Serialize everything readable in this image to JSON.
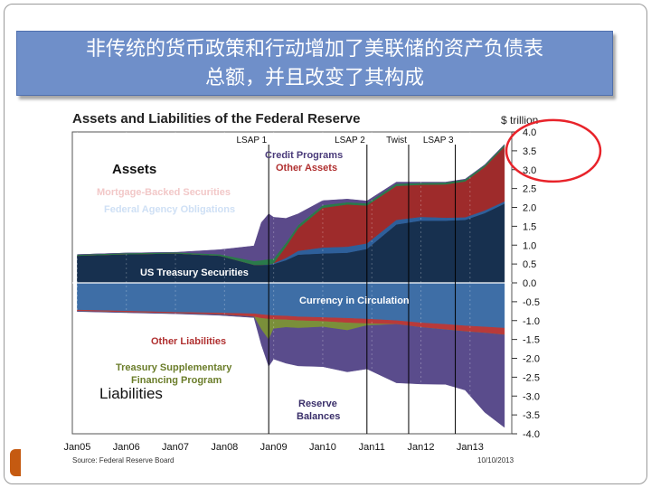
{
  "slide": {
    "title_line1": "非传统的货币政策和行动增加了美联储的资产负债表",
    "title_line2": "总额，并且改变了其构成",
    "accent_color": "#c55a11",
    "title_bg": "#6f8fc9"
  },
  "chart_data": {
    "type": "area",
    "title": "Assets and Liabilities of the Federal Reserve",
    "unit_label": "$ trillion",
    "ylim": [
      -4.0,
      4.0
    ],
    "yticks": [
      "4.0",
      "3.5",
      "3.0",
      "2.5",
      "2.0",
      "1.5",
      "1.0",
      "0.5",
      "0.0",
      "-0.5",
      "-1.0",
      "-1.5",
      "-2.0",
      "-2.5",
      "-3.0",
      "-3.5",
      "-4.0"
    ],
    "x_tick_labels": [
      "Jan05",
      "Jan06",
      "Jan07",
      "Jan08",
      "Jan09",
      "Jan10",
      "Jan11",
      "Jan12",
      "Jan13"
    ],
    "x_range": [
      2004.9,
      2013.85
    ],
    "x": [
      2005.0,
      2006.0,
      2007.0,
      2007.9,
      2008.6,
      2008.75,
      2008.9,
      2009.0,
      2009.25,
      2009.5,
      2010.0,
      2010.5,
      2010.9,
      2011.5,
      2012.0,
      2012.5,
      2012.9,
      2013.3,
      2013.7
    ],
    "events": [
      {
        "label": "LSAP 1",
        "x": 2008.9
      },
      {
        "label": "LSAP 2",
        "x": 2010.9
      },
      {
        "label": "Twist",
        "x": 2011.75
      },
      {
        "label": "LSAP 3",
        "x": 2012.7
      }
    ],
    "asset_series": [
      {
        "name": "US Treasury Securities",
        "color": "#17304f",
        "values": [
          0.72,
          0.76,
          0.78,
          0.72,
          0.48,
          0.48,
          0.48,
          0.5,
          0.6,
          0.75,
          0.78,
          0.8,
          0.9,
          1.55,
          1.65,
          1.65,
          1.67,
          1.85,
          2.1
        ]
      },
      {
        "name": "Federal Agency Obligations",
        "color": "#2e5f9a",
        "values": [
          0.0,
          0.0,
          0.0,
          0.0,
          0.0,
          0.0,
          0.01,
          0.02,
          0.06,
          0.1,
          0.16,
          0.16,
          0.15,
          0.12,
          0.1,
          0.08,
          0.07,
          0.07,
          0.06
        ]
      },
      {
        "name": "Mortgage-Backed Securities",
        "color": "#9e2b2b",
        "values": [
          0.0,
          0.0,
          0.0,
          0.0,
          0.0,
          0.0,
          0.0,
          0.0,
          0.3,
          0.6,
          1.05,
          1.12,
          1.0,
          0.9,
          0.85,
          0.88,
          0.95,
          1.15,
          1.45
        ]
      },
      {
        "name": "Other Assets",
        "color": "#2a7a4a",
        "values": [
          0.03,
          0.03,
          0.03,
          0.04,
          0.1,
          0.12,
          0.14,
          0.12,
          0.1,
          0.08,
          0.07,
          0.06,
          0.06,
          0.06,
          0.05,
          0.05,
          0.05,
          0.05,
          0.05
        ]
      },
      {
        "name": "Credit Programs",
        "color": "#5b4a8a",
        "values": [
          0.0,
          0.0,
          0.0,
          0.12,
          0.4,
          1.0,
          1.2,
          1.1,
          0.65,
          0.3,
          0.12,
          0.08,
          0.06,
          0.04,
          0.02,
          0.01,
          0.01,
          0.01,
          0.01
        ]
      }
    ],
    "liability_series": [
      {
        "name": "Currency in Circulation",
        "color": "#3e6ea6",
        "values": [
          -0.72,
          -0.75,
          -0.78,
          -0.8,
          -0.82,
          -0.84,
          -0.86,
          -0.87,
          -0.88,
          -0.9,
          -0.92,
          -0.94,
          -0.96,
          -1.0,
          -1.06,
          -1.1,
          -1.14,
          -1.17,
          -1.2
        ]
      },
      {
        "name": "Other Liabilities",
        "color": "#b83a3a",
        "values": [
          -0.03,
          -0.03,
          -0.03,
          -0.04,
          -0.08,
          -0.1,
          -0.1,
          -0.1,
          -0.1,
          -0.1,
          -0.1,
          -0.12,
          -0.12,
          -0.1,
          -0.12,
          -0.14,
          -0.15,
          -0.16,
          -0.18
        ]
      },
      {
        "name": "Treasury Supplementary Financing Program",
        "color": "#7a8f3a",
        "values": [
          0.0,
          0.0,
          0.0,
          0.0,
          0.0,
          -0.3,
          -0.55,
          -0.25,
          -0.2,
          -0.2,
          -0.15,
          -0.2,
          -0.05,
          0.0,
          0.0,
          0.0,
          0.0,
          0.0,
          0.0
        ]
      },
      {
        "name": "Reserve Balances",
        "color": "#5a4c8c",
        "values": [
          -0.01,
          -0.01,
          -0.01,
          -0.02,
          -0.02,
          -0.4,
          -0.7,
          -0.8,
          -0.95,
          -1.0,
          -1.05,
          -1.1,
          -1.15,
          -1.55,
          -1.5,
          -1.45,
          -1.55,
          -2.1,
          -2.45
        ]
      }
    ],
    "labels": {
      "assets": "Assets",
      "liabilities": "Liabilities",
      "mbs": "Mortgage-Backed Securities",
      "agency": "Federal Agency Obligations",
      "treasury": "US Treasury Securities",
      "credit": "Credit Programs",
      "other_assets": "Other Assets",
      "currency": "Currency in Circulation",
      "other_liab": "Other Liabilities",
      "tsfp_line1": "Treasury Supplementary",
      "tsfp_line2": "Financing Program",
      "reserve_line1": "Reserve",
      "reserve_line2": "Balances"
    },
    "source": "Source: Federal Reserve Board",
    "date": "10/10/2013"
  }
}
